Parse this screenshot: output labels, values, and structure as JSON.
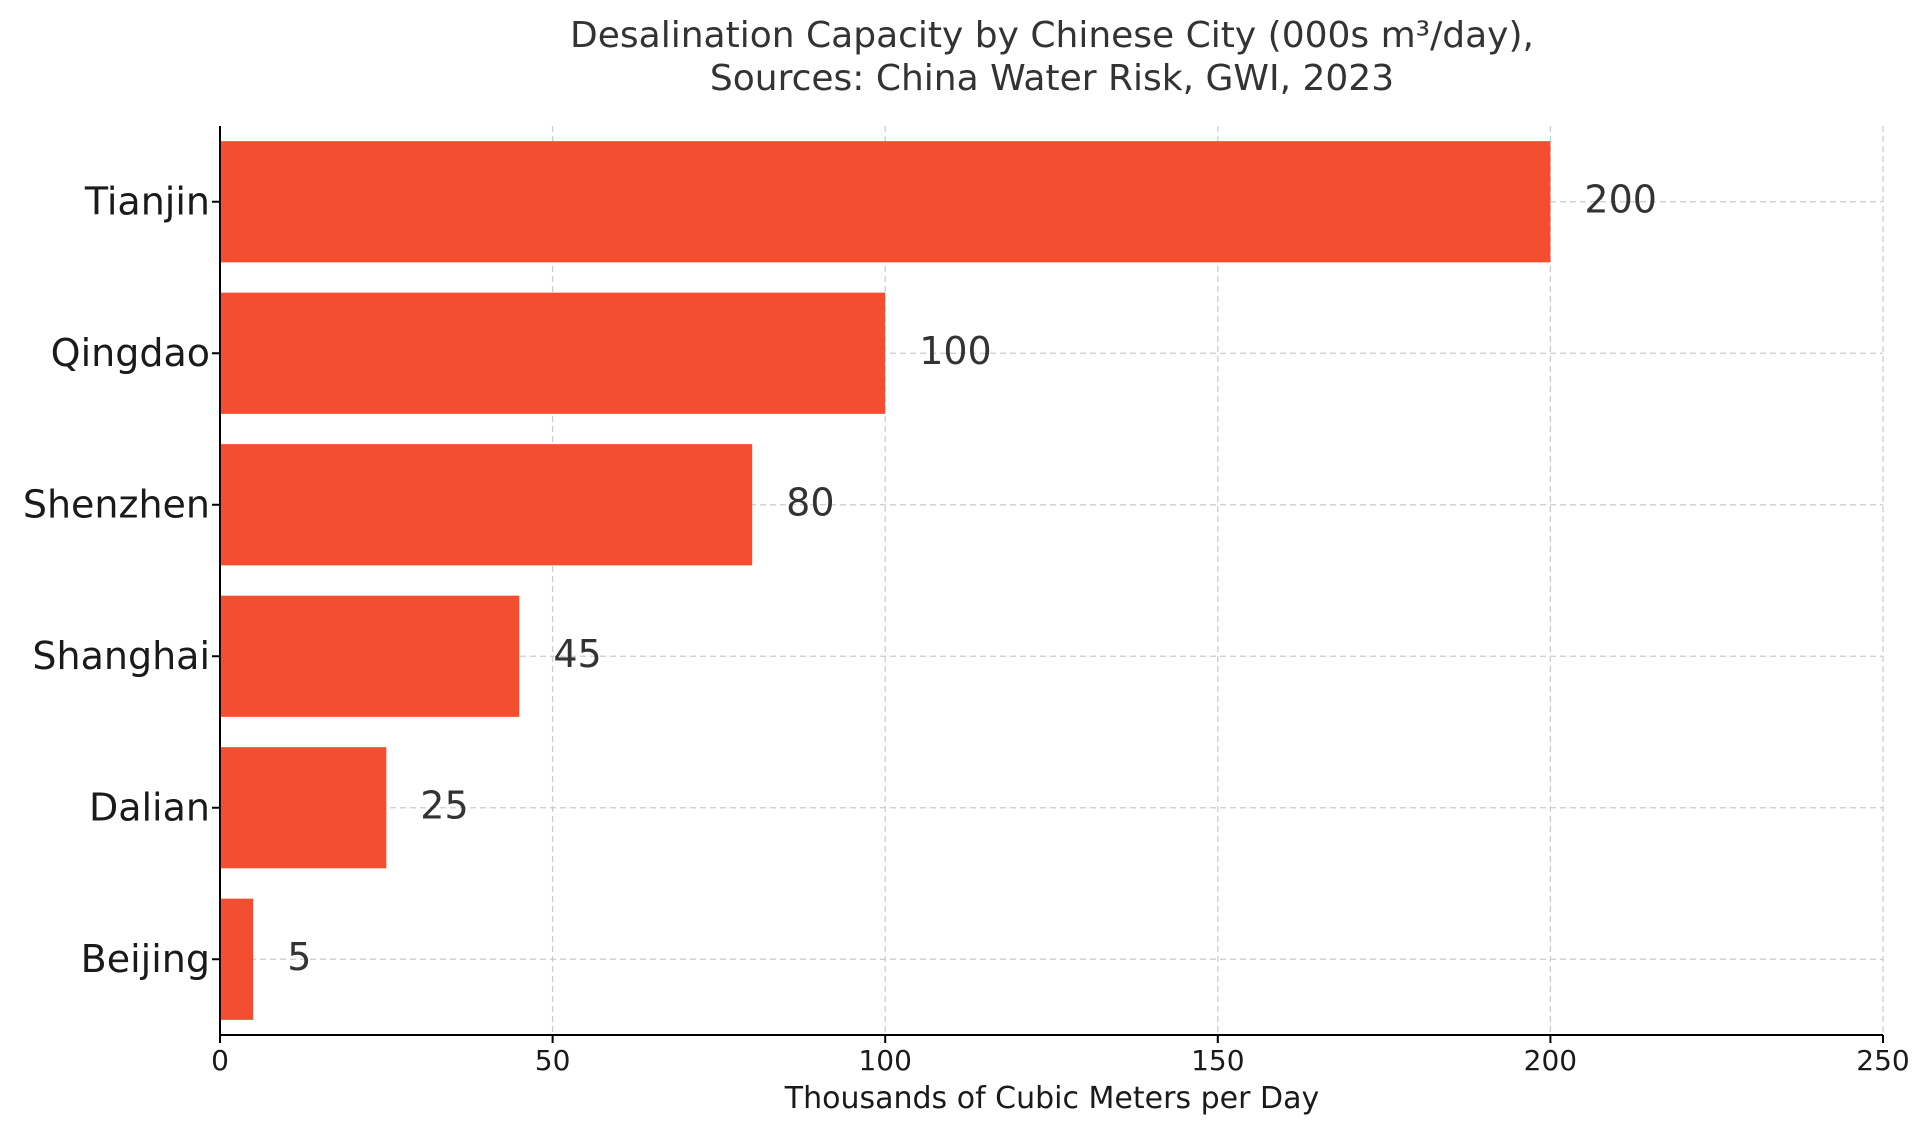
{
  "chart_data": {
    "type": "bar",
    "orientation": "horizontal",
    "title_line1": "Desalination Capacity by Chinese City (000s m³/day),",
    "title_line2": "Sources: China Water Risk, GWI, 2023",
    "xlabel": "Thousands of Cubic Meters per Day",
    "ylabel": "",
    "categories": [
      "Tianjin",
      "Qingdao",
      "Shenzhen",
      "Shanghai",
      "Dalian",
      "Beijing"
    ],
    "values": [
      200,
      100,
      80,
      45,
      25,
      5
    ],
    "value_labels": [
      "200",
      "100",
      "80",
      "45",
      "25",
      "5"
    ],
    "xlim": [
      0,
      250
    ],
    "x_ticks": [
      0,
      50,
      100,
      150,
      200,
      250
    ],
    "x_tick_labels": [
      "0",
      "50",
      "100",
      "150",
      "200",
      "250"
    ],
    "bar_color": "#f44e30",
    "grid": true,
    "legend": "none"
  }
}
